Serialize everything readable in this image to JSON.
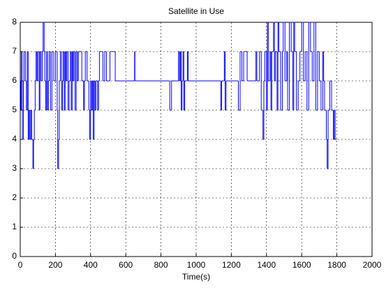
{
  "chart_data": {
    "type": "line",
    "title": "Satellite in Use",
    "x_label": "Time(s)",
    "step": true,
    "grid": true,
    "color": "#0000ff",
    "x": [
      0,
      3,
      6,
      12,
      18,
      22,
      30,
      35,
      40,
      45,
      50,
      55,
      60,
      65,
      72,
      76,
      80,
      85,
      90,
      95,
      100,
      108,
      112,
      118,
      125,
      130,
      136,
      140,
      145,
      150,
      155,
      160,
      165,
      172,
      180,
      190,
      200,
      210,
      213,
      218,
      222,
      228,
      235,
      240,
      245,
      250,
      255,
      260,
      265,
      272,
      278,
      285,
      290,
      295,
      300,
      305,
      312,
      318,
      325,
      330,
      350,
      360,
      365,
      370,
      380,
      390,
      395,
      400,
      405,
      410,
      415,
      420,
      425,
      430,
      440,
      445,
      450,
      470,
      480,
      490,
      510,
      540,
      650,
      652,
      850,
      860,
      900,
      905,
      910,
      915,
      920,
      925,
      930,
      935,
      950,
      955,
      1140,
      1145,
      1160,
      1165,
      1170,
      1240,
      1250,
      1260,
      1270,
      1290,
      1340,
      1345,
      1360,
      1370,
      1380,
      1385,
      1390,
      1400,
      1405,
      1410,
      1420,
      1425,
      1430,
      1440,
      1445,
      1450,
      1460,
      1465,
      1470,
      1480,
      1490,
      1495,
      1505,
      1515,
      1520,
      1530,
      1540,
      1550,
      1555,
      1560,
      1570,
      1580,
      1590,
      1600,
      1610,
      1620,
      1630,
      1640,
      1650,
      1660,
      1670,
      1680,
      1690,
      1700,
      1710,
      1720,
      1725,
      1730,
      1740,
      1745,
      1750,
      1760,
      1770,
      1780,
      1785,
      1790,
      1800
    ],
    "values": [
      6,
      5,
      7,
      4,
      6,
      7,
      6,
      5,
      7,
      4,
      5,
      4,
      5,
      4,
      3,
      4,
      5,
      6,
      7,
      6,
      7,
      5,
      7,
      6,
      7,
      8,
      7,
      6,
      5,
      7,
      5,
      6,
      7,
      5,
      7,
      6,
      7,
      5,
      3,
      4,
      6,
      7,
      5,
      6,
      7,
      5,
      7,
      6,
      7,
      5,
      6,
      7,
      5,
      7,
      6,
      7,
      5,
      7,
      6,
      7,
      6,
      5,
      6,
      7,
      6,
      5,
      4,
      6,
      5,
      6,
      4,
      6,
      5,
      6,
      5,
      6,
      7,
      6,
      7,
      6,
      7,
      6,
      7,
      6,
      5,
      6,
      7,
      6,
      7,
      5,
      6,
      7,
      5,
      6,
      7,
      6,
      5,
      6,
      7,
      5,
      6,
      5,
      7,
      6,
      7,
      6,
      7,
      6,
      7,
      5,
      4,
      6,
      7,
      5,
      8,
      6,
      7,
      5,
      7,
      8,
      6,
      7,
      5,
      8,
      7,
      5,
      7,
      8,
      6,
      7,
      5,
      8,
      7,
      5,
      8,
      7,
      5,
      6,
      7,
      8,
      6,
      7,
      5,
      8,
      7,
      6,
      8,
      5,
      7,
      6,
      5,
      7,
      6,
      5,
      4,
      3,
      5,
      6,
      5,
      4,
      5,
      4,
      4
    ],
    "xlim": [
      0,
      2000
    ],
    "xticks": [
      0,
      200,
      400,
      600,
      800,
      1000,
      1200,
      1400,
      1600,
      1800,
      2000
    ],
    "ylim": [
      0,
      8
    ],
    "yticks": [
      0,
      1,
      2,
      3,
      4,
      5,
      6,
      7,
      8
    ]
  }
}
